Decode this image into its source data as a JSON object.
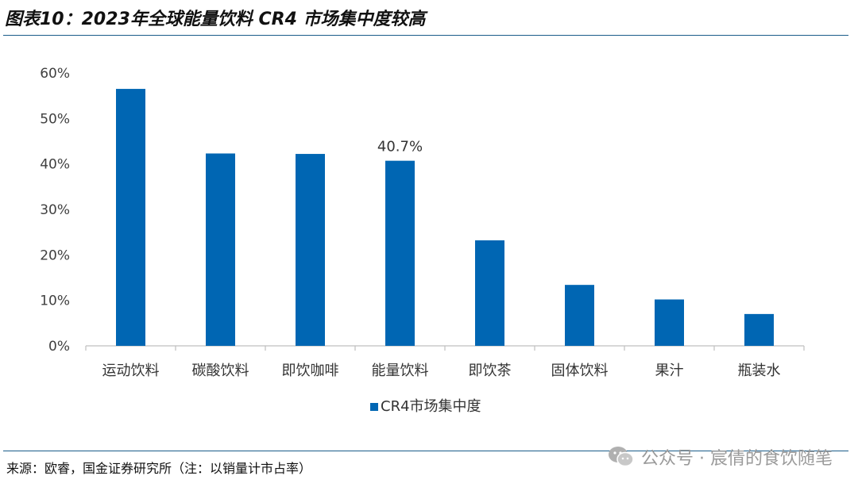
{
  "title": "图表10：2023年全球能量饮料 CR4 市场集中度较高",
  "source": "来源：欧睿，国金证券研究所（注：以销量计市占率）",
  "watermark": {
    "text": "公众号 · 宸倩的食饮随笔",
    "icon": "wechat-icon"
  },
  "colors": {
    "bar": "#0066b3",
    "axis": "#bfbfbf",
    "text": "#404040",
    "rule": "#1a5c8a"
  },
  "chart_data": {
    "type": "bar",
    "categories": [
      "运动饮料",
      "碳酸饮料",
      "即饮咖啡",
      "能量饮料",
      "即饮茶",
      "固体饮料",
      "果汁",
      "瓶装水"
    ],
    "series": [
      {
        "name": "CR4市场集中度",
        "values": [
          56.5,
          42.3,
          42.2,
          40.7,
          23.2,
          13.4,
          10.2,
          7.0
        ]
      }
    ],
    "data_labels": [
      null,
      null,
      null,
      "40.7%",
      null,
      null,
      null,
      null
    ],
    "ylim": [
      0,
      60
    ],
    "yticks": [
      0,
      10,
      20,
      30,
      40,
      50,
      60
    ],
    "ytick_labels": [
      "0%",
      "10%",
      "20%",
      "30%",
      "40%",
      "50%",
      "60%"
    ],
    "grid": false,
    "legend": "bottom-center"
  }
}
